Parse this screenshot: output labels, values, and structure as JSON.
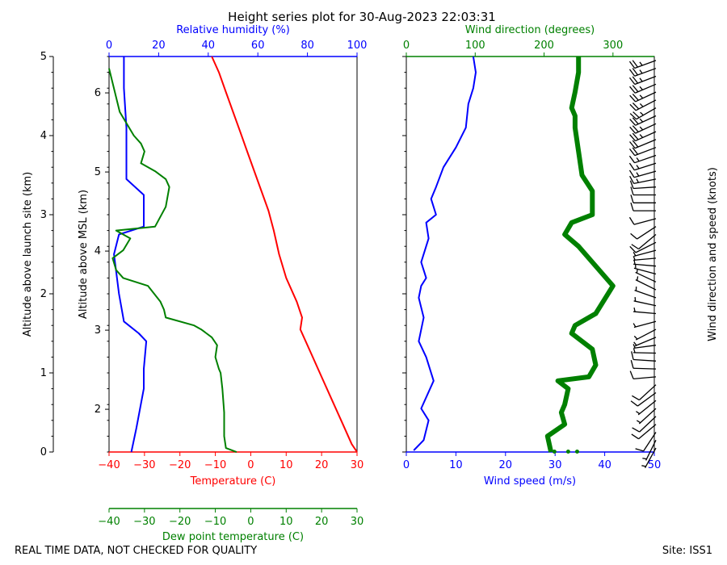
{
  "title": "Height series plot for 30-Aug-2023 22:03:31",
  "footer": {
    "left_note": "REAL TIME DATA, NOT CHECKED FOR QUALITY",
    "site": "Site: ISS1"
  },
  "colors": {
    "temperature": "#ff0000",
    "dewpoint": "#008000",
    "humidity": "#0000ff",
    "wind_speed": "#0000ff",
    "wind_direction": "#008000",
    "barbs": "#000000"
  },
  "chart_data": [
    {
      "type": "line",
      "panel": "thermodynamic",
      "axes": {
        "left_outer": {
          "label": "Altitude above launch site (km)",
          "range": [
            0,
            5
          ],
          "ticks": [
            "0",
            "1",
            "2",
            "3",
            "4",
            "5"
          ]
        },
        "left_inner": {
          "label": "Altitude above MSL (km)",
          "range": [
            1.46,
            6.46
          ],
          "ticks": [
            "2",
            "3",
            "4",
            "5",
            "6"
          ]
        },
        "top": {
          "label": "Relative humidity (%)",
          "range": [
            0,
            100
          ],
          "ticks": [
            "0",
            "20",
            "40",
            "60",
            "80",
            "100"
          ]
        },
        "bottom": {
          "label": "Temperature (C)",
          "range": [
            -40,
            30
          ],
          "ticks": [
            "−40",
            "−30",
            "−20",
            "−10",
            "0",
            "10",
            "20",
            "30"
          ]
        },
        "bottom2": {
          "label": "Dew point temperature (C)",
          "range": [
            -40,
            30
          ],
          "ticks": [
            "−40",
            "−30",
            "−20",
            "−10",
            "0",
            "10",
            "20",
            "30"
          ]
        }
      },
      "series": [
        {
          "name": "Temperature (C)",
          "axis": "bottom",
          "points": [
            [
              30,
              0
            ],
            [
              28.5,
              0.1
            ],
            [
              26,
              0.35
            ],
            [
              23,
              0.65
            ],
            [
              20,
              0.95
            ],
            [
              17,
              1.25
            ],
            [
              14,
              1.55
            ],
            [
              14.5,
              1.7
            ],
            [
              13,
              1.9
            ],
            [
              10,
              2.2
            ],
            [
              8,
              2.5
            ],
            [
              6.5,
              2.8
            ],
            [
              5,
              3.05
            ],
            [
              3,
              3.3
            ],
            [
              1,
              3.55
            ],
            [
              -1,
              3.8
            ],
            [
              -3,
              4.05
            ],
            [
              -5,
              4.3
            ],
            [
              -7,
              4.55
            ],
            [
              -9,
              4.8
            ],
            [
              -11,
              5.0
            ]
          ]
        },
        {
          "name": "Dew point temperature (C)",
          "axis": "bottom2",
          "points": [
            [
              -4,
              0
            ],
            [
              -7,
              0.05
            ],
            [
              -7.5,
              0.2
            ],
            [
              -7.5,
              0.5
            ],
            [
              -8,
              0.8
            ],
            [
              -8.5,
              1.0
            ],
            [
              -9,
              1.05
            ],
            [
              -10,
              1.2
            ],
            [
              -9.5,
              1.35
            ],
            [
              -11,
              1.45
            ],
            [
              -14,
              1.55
            ],
            [
              -16,
              1.6
            ],
            [
              -24,
              1.7
            ],
            [
              -24.5,
              1.8
            ],
            [
              -25.5,
              1.9
            ],
            [
              -29,
              2.1
            ],
            [
              -36,
              2.2
            ],
            [
              -38,
              2.3
            ],
            [
              -39,
              2.45
            ],
            [
              -36,
              2.55
            ],
            [
              -34,
              2.7
            ],
            [
              -36,
              2.75
            ],
            [
              -38,
              2.8
            ],
            [
              -27,
              2.85
            ],
            [
              -24,
              3.1
            ],
            [
              -23,
              3.35
            ],
            [
              -24,
              3.45
            ],
            [
              -27,
              3.55
            ],
            [
              -31,
              3.65
            ],
            [
              -30,
              3.8
            ],
            [
              -31,
              3.9
            ],
            [
              -33,
              4.0
            ],
            [
              -37,
              4.3
            ],
            [
              -40,
              4.85
            ]
          ]
        },
        {
          "name": "Relative humidity (%)",
          "axis": "top",
          "points": [
            [
              9,
              0
            ],
            [
              11,
              0.3
            ],
            [
              14,
              0.8
            ],
            [
              14,
              1.05
            ],
            [
              15,
              1.4
            ],
            [
              12,
              1.5
            ],
            [
              6,
              1.65
            ],
            [
              4,
              2.0
            ],
            [
              2,
              2.5
            ],
            [
              4,
              2.75
            ],
            [
              14,
              2.85
            ],
            [
              14,
              3.25
            ],
            [
              7,
              3.45
            ],
            [
              7,
              3.75
            ],
            [
              7,
              4.1
            ],
            [
              6,
              4.6
            ],
            [
              6,
              5.0
            ]
          ]
        }
      ]
    },
    {
      "type": "line",
      "panel": "wind",
      "axes": {
        "top": {
          "label": "Wind direction (degrees)",
          "range": [
            0,
            360
          ],
          "ticks": [
            "0",
            "100",
            "200",
            "300"
          ]
        },
        "bottom": {
          "label": "Wind speed (m/s)",
          "range": [
            0,
            50
          ],
          "ticks": [
            "0",
            "10",
            "20",
            "30",
            "40",
            "50"
          ]
        },
        "right": {
          "label": "Wind direction and speed (knots)"
        },
        "y_range": [
          0,
          5
        ]
      },
      "series": [
        {
          "name": "Wind speed (m/s)",
          "axis": "bottom",
          "points": [
            [
              1.5,
              0.02
            ],
            [
              3.5,
              0.15
            ],
            [
              4.5,
              0.4
            ],
            [
              3,
              0.55
            ],
            [
              5.5,
              0.9
            ],
            [
              4,
              1.2
            ],
            [
              2.5,
              1.4
            ],
            [
              3.5,
              1.7
            ],
            [
              2.5,
              1.95
            ],
            [
              3,
              2.1
            ],
            [
              4,
              2.2
            ],
            [
              3,
              2.4
            ],
            [
              4.5,
              2.7
            ],
            [
              4,
              2.9
            ],
            [
              6,
              3.0
            ],
            [
              5,
              3.2
            ],
            [
              6,
              3.35
            ],
            [
              7.5,
              3.6
            ],
            [
              10,
              3.85
            ],
            [
              12,
              4.1
            ],
            [
              12.5,
              4.4
            ],
            [
              13.5,
              4.6
            ],
            [
              14,
              4.8
            ],
            [
              13.5,
              5.0
            ]
          ]
        },
        {
          "name": "Wind direction (degrees)",
          "axis": "top",
          "points": [
            [
              210,
              0.0
            ],
            [
              205,
              0.2
            ],
            [
              230,
              0.35
            ],
            [
              225,
              0.5
            ],
            [
              230,
              0.6
            ],
            [
              235,
              0.8
            ],
            [
              220,
              0.9
            ],
            [
              265,
              0.95
            ],
            [
              275,
              1.1
            ],
            [
              270,
              1.3
            ],
            [
              240,
              1.5
            ],
            [
              245,
              1.6
            ],
            [
              275,
              1.75
            ],
            [
              300,
              2.1
            ],
            [
              275,
              2.35
            ],
            [
              250,
              2.6
            ],
            [
              230,
              2.75
            ],
            [
              240,
              2.9
            ],
            [
              270,
              3.0
            ],
            [
              270,
              3.3
            ],
            [
              255,
              3.5
            ],
            [
              250,
              3.8
            ],
            [
              245,
              4.1
            ],
            [
              245,
              4.25
            ],
            [
              240,
              4.35
            ],
            [
              245,
              4.55
            ],
            [
              250,
              4.8
            ],
            [
              250,
              5.0
            ]
          ]
        }
      ]
    }
  ]
}
